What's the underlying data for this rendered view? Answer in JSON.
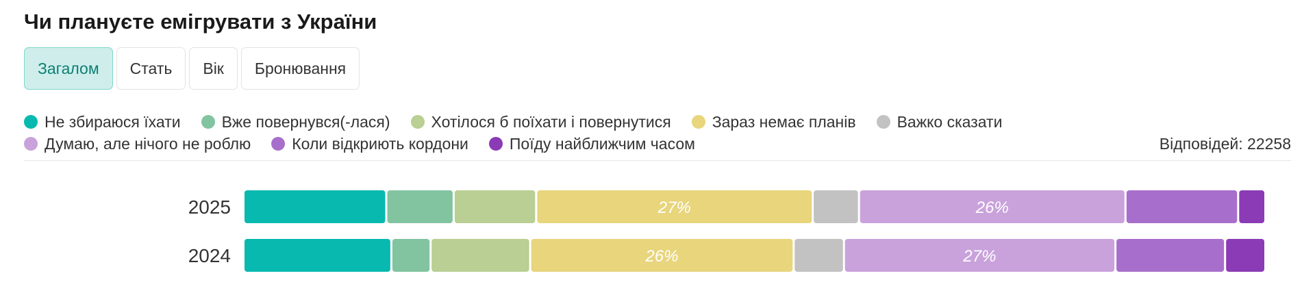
{
  "title": "Чи плануєте емігрувати з України",
  "tabs": [
    {
      "label": "Загалом",
      "active": true
    },
    {
      "label": "Стать",
      "active": false
    },
    {
      "label": "Вік",
      "active": false
    },
    {
      "label": "Бронювання",
      "active": false
    }
  ],
  "responses_label": "Відповідей: 22258",
  "chart_data": {
    "type": "bar",
    "orientation": "horizontal-stacked-100",
    "categories": [
      "2025",
      "2024"
    ],
    "series": [
      {
        "name": "Не збираюся їхати",
        "color": "#08b9b0",
        "values": [
          14,
          14.5
        ]
      },
      {
        "name": "Вже повернувся(-лася)",
        "color": "#82c4a0",
        "values": [
          6.5,
          3.7
        ]
      },
      {
        "name": "Хотілося б поїхати і повернутися",
        "color": "#b9cf93",
        "values": [
          8,
          9.7
        ]
      },
      {
        "name": "Зараз немає планів",
        "color": "#e8d57c",
        "values": [
          27.3,
          26
        ],
        "label": [
          "27%",
          "26%"
        ]
      },
      {
        "name": "Важко сказати",
        "color": "#c2c2c2",
        "values": [
          4.4,
          4.8
        ]
      },
      {
        "name": "Думаю, але нічого не роблю",
        "color": "#c9a2dc",
        "values": [
          26.3,
          26.8
        ],
        "label": [
          "26%",
          "27%"
        ]
      },
      {
        "name": "Коли відкриють кордони",
        "color": "#a76fcb",
        "values": [
          11,
          10.7
        ]
      },
      {
        "name": "Поїду найближчим часом",
        "color": "#8a3bb5",
        "values": [
          2.5,
          3.8
        ]
      }
    ]
  }
}
